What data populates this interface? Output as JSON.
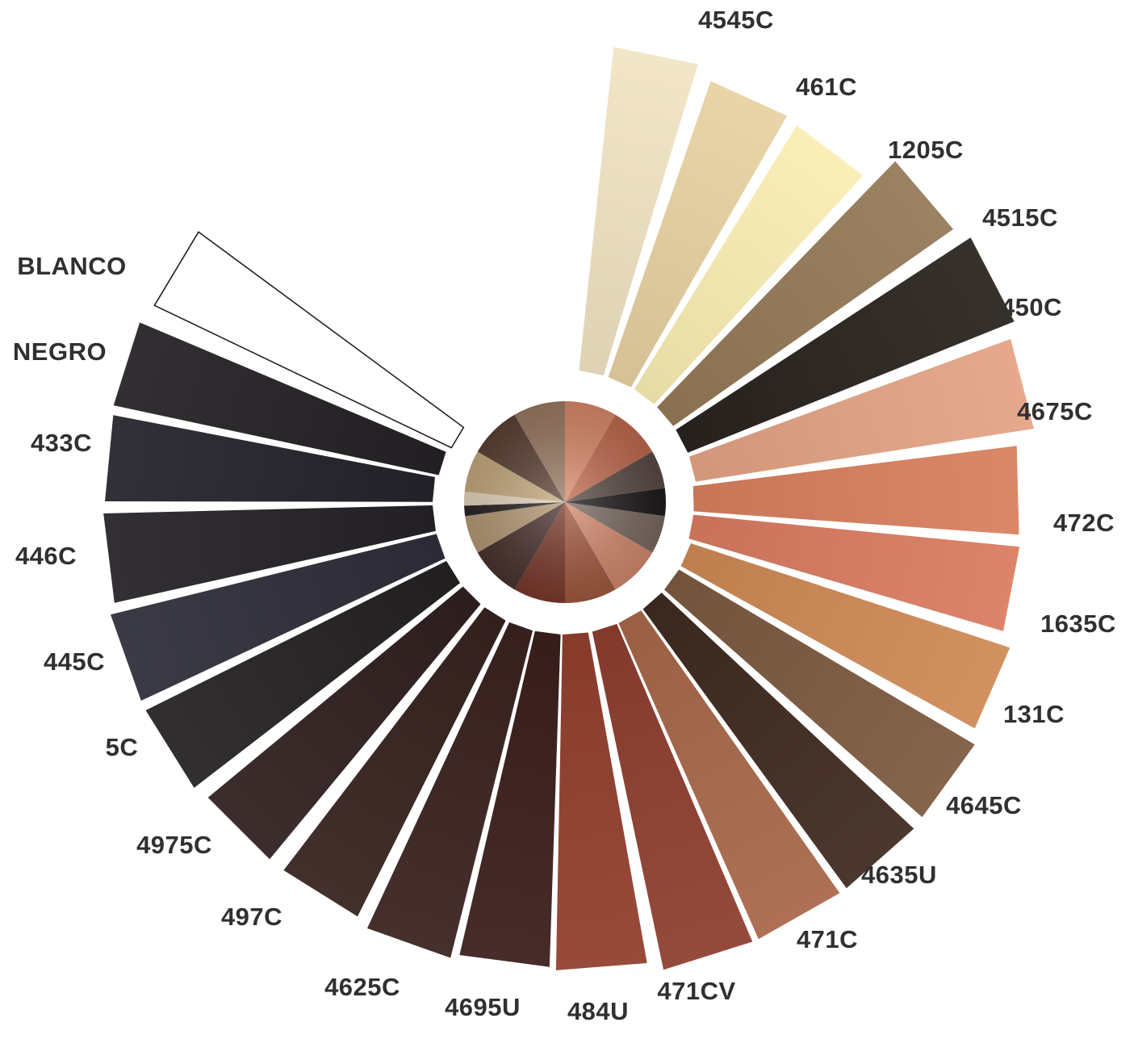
{
  "swatches": [
    {
      "code": "4545C",
      "color": "#f2e4c4"
    },
    {
      "code": "461C",
      "color": "#e8d2a2"
    },
    {
      "code": "1205C",
      "color": "#fbeeb4"
    },
    {
      "code": "4515C",
      "color": "#957a58"
    },
    {
      "code": "450C",
      "color": "#2a241f"
    },
    {
      "code": "4675C",
      "color": "#e4a486"
    },
    {
      "code": "472C",
      "color": "#d9805f"
    },
    {
      "code": "1635C",
      "color": "#db7c62"
    },
    {
      "code": "131C",
      "color": "#cf8a56"
    },
    {
      "code": "4645C",
      "color": "#7d5a41"
    },
    {
      "code": "4635U",
      "color": "#3f2a20"
    },
    {
      "code": "471C",
      "color": "#a9684a"
    },
    {
      "code": "471CV",
      "color": "#8e3f30"
    },
    {
      "code": "484U",
      "color": "#93402f"
    },
    {
      "code": "4695U",
      "color": "#3b1f1c"
    },
    {
      "code": "4625C",
      "color": "#3a2320"
    },
    {
      "code": "497C",
      "color": "#36231f"
    },
    {
      "code": "4975C",
      "color": "#30211f"
    },
    {
      "code": "5C",
      "color": "#242222"
    },
    {
      "code": "445C",
      "color": "#2f2e3a"
    },
    {
      "code": "446C",
      "color": "#252327"
    },
    {
      "code": "433C",
      "color": "#25242b"
    },
    {
      "code": "NEGRO",
      "color": "#252225"
    },
    {
      "code": "BLANCO",
      "color": "#ffffff"
    }
  ]
}
